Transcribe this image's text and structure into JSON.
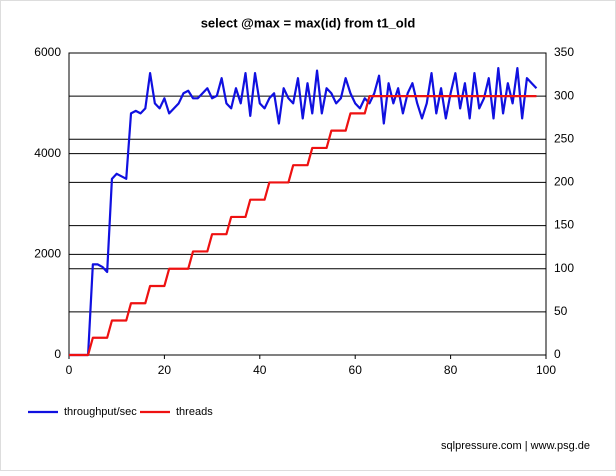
{
  "chart_data": {
    "type": "line",
    "title": "select @max = max(id) from t1_old",
    "x": [
      0,
      1,
      2,
      3,
      4,
      5,
      6,
      7,
      8,
      9,
      10,
      11,
      12,
      13,
      14,
      15,
      16,
      17,
      18,
      19,
      20,
      21,
      22,
      23,
      24,
      25,
      26,
      27,
      28,
      29,
      30,
      31,
      32,
      33,
      34,
      35,
      36,
      37,
      38,
      39,
      40,
      41,
      42,
      43,
      44,
      45,
      46,
      47,
      48,
      49,
      50,
      51,
      52,
      53,
      54,
      55,
      56,
      57,
      58,
      59,
      60,
      61,
      62,
      63,
      64,
      65,
      66,
      67,
      68,
      69,
      70,
      71,
      72,
      73,
      74,
      75,
      76,
      77,
      78,
      79,
      80,
      81,
      82,
      83,
      84,
      85,
      86,
      87,
      88,
      89,
      90,
      91,
      92,
      93,
      94,
      95,
      96,
      97,
      98
    ],
    "series": [
      {
        "name": "throughput/sec",
        "color": "#1010e0",
        "values": [
          0,
          0,
          0,
          0,
          0,
          1800,
          1800,
          1750,
          1650,
          3500,
          3600,
          3550,
          3500,
          4800,
          4850,
          4800,
          4900,
          5600,
          5000,
          4900,
          5100,
          4800,
          4900,
          5000,
          5200,
          5250,
          5100,
          5100,
          5200,
          5300,
          5100,
          5150,
          5500,
          5000,
          4900,
          5300,
          5000,
          5600,
          4750,
          5600,
          5000,
          4900,
          5100,
          5200,
          4600,
          5300,
          5100,
          5000,
          5500,
          4700,
          5400,
          4800,
          5650,
          4800,
          5300,
          5200,
          5000,
          5100,
          5500,
          5200,
          5000,
          4900,
          5100,
          5000,
          5200,
          5550,
          4600,
          5400,
          5000,
          5300,
          4800,
          5200,
          5400,
          5000,
          4700,
          5000,
          5600,
          4800,
          5300,
          4700,
          5200,
          5600,
          4900,
          5400,
          4700,
          5600,
          4900,
          5100,
          5500,
          4700,
          5700,
          4800,
          5400,
          5000,
          5700,
          4700,
          5500,
          5400,
          5300
        ]
      },
      {
        "name": "threads",
        "color": "#ee1111",
        "axis": "y2",
        "values": [
          0,
          0,
          0,
          0,
          0,
          20,
          20,
          20,
          20,
          40,
          40,
          40,
          40,
          60,
          60,
          60,
          60,
          80,
          80,
          80,
          80,
          100,
          100,
          100,
          100,
          100,
          120,
          120,
          120,
          120,
          140,
          140,
          140,
          140,
          160,
          160,
          160,
          160,
          180,
          180,
          180,
          180,
          200,
          200,
          200,
          200,
          200,
          220,
          220,
          220,
          220,
          240,
          240,
          240,
          240,
          260,
          260,
          260,
          260,
          280,
          280,
          280,
          280,
          300,
          300,
          300,
          300,
          300,
          300,
          300,
          300,
          300,
          300,
          300,
          300,
          300,
          300,
          300,
          300,
          300,
          300,
          300,
          300,
          300,
          300,
          300,
          300,
          300,
          300,
          300,
          300,
          300,
          300,
          300,
          300,
          300,
          300,
          300,
          300
        ]
      }
    ],
    "xlim": [
      0,
      100
    ],
    "xticks": [
      0,
      20,
      40,
      60,
      80,
      100
    ],
    "ylim": [
      0,
      6000
    ],
    "yticks": [
      0,
      2000,
      4000,
      6000
    ],
    "y2lim": [
      0,
      350
    ],
    "y2ticks": [
      0,
      50,
      100,
      150,
      200,
      250,
      300,
      350
    ],
    "grid": true,
    "legend": "bottom-left",
    "footer": "sqlpressure.com | www.psg.de"
  }
}
